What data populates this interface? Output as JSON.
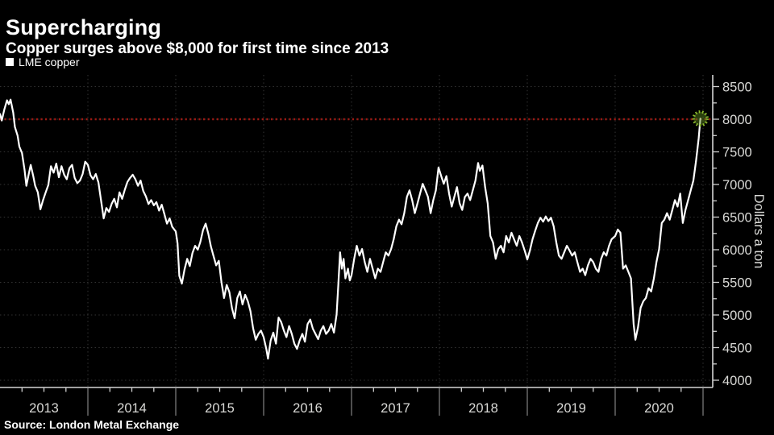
{
  "header": {
    "title": "Supercharging",
    "subtitle": "Copper surges above $8,000 for first time since 2013"
  },
  "legend": {
    "label": "LME copper"
  },
  "footer": {
    "source": "Source: London Metal Exchange"
  },
  "axes": {
    "y_label": "Dollars a ton",
    "y_ticks": [
      8500,
      8000,
      7500,
      7000,
      6500,
      6000,
      5500,
      5000,
      4500,
      4000
    ],
    "x_ticks": [
      2013,
      2014,
      2015,
      2016,
      2017,
      2018,
      2019,
      2020
    ]
  },
  "colors": {
    "background": "#000000",
    "line": "#ffffff",
    "threshold_red": "#9b1a13",
    "marker_green": "#8fbe2e",
    "grid": "#333333",
    "tick_text": "#d9d9d6"
  },
  "chart_data": {
    "type": "line",
    "title": "Supercharging",
    "xlabel": "",
    "ylabel": "Dollars a ton",
    "xlim": [
      2013,
      2021.1
    ],
    "ylim": [
      3890,
      8650
    ],
    "grid": true,
    "legend_position": "top-left",
    "threshold": {
      "value": 8000,
      "color": "#9b1a13",
      "style": "dotted"
    },
    "end_marker": {
      "x": 2020.97,
      "y": 8010,
      "shape": "dotted-circle",
      "color": "#8fbe2e"
    },
    "series": [
      {
        "name": "LME copper",
        "points": [
          [
            2013.0,
            8080
          ],
          [
            2013.02,
            7980
          ],
          [
            2013.05,
            8150
          ],
          [
            2013.08,
            8290
          ],
          [
            2013.1,
            8230
          ],
          [
            2013.12,
            8300
          ],
          [
            2013.15,
            8100
          ],
          [
            2013.17,
            7880
          ],
          [
            2013.2,
            7750
          ],
          [
            2013.22,
            7580
          ],
          [
            2013.25,
            7480
          ],
          [
            2013.28,
            7220
          ],
          [
            2013.3,
            6980
          ],
          [
            2013.33,
            7180
          ],
          [
            2013.35,
            7300
          ],
          [
            2013.38,
            7120
          ],
          [
            2013.4,
            6980
          ],
          [
            2013.43,
            6880
          ],
          [
            2013.46,
            6620
          ],
          [
            2013.49,
            6760
          ],
          [
            2013.52,
            6880
          ],
          [
            2013.55,
            6990
          ],
          [
            2013.58,
            7280
          ],
          [
            2013.61,
            7180
          ],
          [
            2013.64,
            7320
          ],
          [
            2013.67,
            7110
          ],
          [
            2013.7,
            7280
          ],
          [
            2013.73,
            7150
          ],
          [
            2013.76,
            7080
          ],
          [
            2013.79,
            7250
          ],
          [
            2013.82,
            7300
          ],
          [
            2013.85,
            7100
          ],
          [
            2013.88,
            7020
          ],
          [
            2013.91,
            7060
          ],
          [
            2013.94,
            7160
          ],
          [
            2013.97,
            7350
          ],
          [
            2014.0,
            7300
          ],
          [
            2014.03,
            7140
          ],
          [
            2014.06,
            7080
          ],
          [
            2014.09,
            7160
          ],
          [
            2014.12,
            7030
          ],
          [
            2014.15,
            6750
          ],
          [
            2014.18,
            6480
          ],
          [
            2014.21,
            6640
          ],
          [
            2014.24,
            6580
          ],
          [
            2014.27,
            6700
          ],
          [
            2014.3,
            6780
          ],
          [
            2014.33,
            6650
          ],
          [
            2014.36,
            6880
          ],
          [
            2014.39,
            6780
          ],
          [
            2014.42,
            6920
          ],
          [
            2014.45,
            7040
          ],
          [
            2014.48,
            7100
          ],
          [
            2014.51,
            7150
          ],
          [
            2014.54,
            7080
          ],
          [
            2014.57,
            6980
          ],
          [
            2014.6,
            7060
          ],
          [
            2014.63,
            6900
          ],
          [
            2014.66,
            6820
          ],
          [
            2014.69,
            6700
          ],
          [
            2014.72,
            6760
          ],
          [
            2014.75,
            6680
          ],
          [
            2014.78,
            6730
          ],
          [
            2014.81,
            6600
          ],
          [
            2014.84,
            6690
          ],
          [
            2014.87,
            6550
          ],
          [
            2014.9,
            6400
          ],
          [
            2014.93,
            6480
          ],
          [
            2014.96,
            6350
          ],
          [
            2015.0,
            6280
          ],
          [
            2015.02,
            6100
          ],
          [
            2015.04,
            5600
          ],
          [
            2015.07,
            5480
          ],
          [
            2015.1,
            5700
          ],
          [
            2015.13,
            5860
          ],
          [
            2015.16,
            5750
          ],
          [
            2015.19,
            5950
          ],
          [
            2015.22,
            6060
          ],
          [
            2015.25,
            6000
          ],
          [
            2015.28,
            6120
          ],
          [
            2015.31,
            6300
          ],
          [
            2015.34,
            6400
          ],
          [
            2015.37,
            6250
          ],
          [
            2015.4,
            6050
          ],
          [
            2015.43,
            5900
          ],
          [
            2015.46,
            5760
          ],
          [
            2015.49,
            5830
          ],
          [
            2015.52,
            5500
          ],
          [
            2015.55,
            5260
          ],
          [
            2015.58,
            5460
          ],
          [
            2015.61,
            5350
          ],
          [
            2015.64,
            5100
          ],
          [
            2015.67,
            4950
          ],
          [
            2015.7,
            5260
          ],
          [
            2015.73,
            5360
          ],
          [
            2015.76,
            5160
          ],
          [
            2015.79,
            5310
          ],
          [
            2015.82,
            5210
          ],
          [
            2015.85,
            5060
          ],
          [
            2015.88,
            4800
          ],
          [
            2015.91,
            4620
          ],
          [
            2015.94,
            4710
          ],
          [
            2015.97,
            4760
          ],
          [
            2016.0,
            4660
          ],
          [
            2016.03,
            4480
          ],
          [
            2016.05,
            4330
          ],
          [
            2016.08,
            4610
          ],
          [
            2016.11,
            4730
          ],
          [
            2016.14,
            4560
          ],
          [
            2016.17,
            4960
          ],
          [
            2016.2,
            4890
          ],
          [
            2016.23,
            4760
          ],
          [
            2016.26,
            4660
          ],
          [
            2016.29,
            4830
          ],
          [
            2016.32,
            4710
          ],
          [
            2016.35,
            4560
          ],
          [
            2016.38,
            4480
          ],
          [
            2016.41,
            4610
          ],
          [
            2016.44,
            4710
          ],
          [
            2016.47,
            4590
          ],
          [
            2016.5,
            4860
          ],
          [
            2016.53,
            4930
          ],
          [
            2016.56,
            4790
          ],
          [
            2016.59,
            4710
          ],
          [
            2016.62,
            4630
          ],
          [
            2016.65,
            4760
          ],
          [
            2016.68,
            4830
          ],
          [
            2016.71,
            4710
          ],
          [
            2016.74,
            4760
          ],
          [
            2016.77,
            4860
          ],
          [
            2016.8,
            4730
          ],
          [
            2016.83,
            5010
          ],
          [
            2016.85,
            5460
          ],
          [
            2016.87,
            5960
          ],
          [
            2016.89,
            5710
          ],
          [
            2016.91,
            5860
          ],
          [
            2016.93,
            5560
          ],
          [
            2016.96,
            5710
          ],
          [
            2016.98,
            5530
          ],
          [
            2017.0,
            5610
          ],
          [
            2017.03,
            5860
          ],
          [
            2017.06,
            6060
          ],
          [
            2017.09,
            5910
          ],
          [
            2017.12,
            6010
          ],
          [
            2017.15,
            5810
          ],
          [
            2017.18,
            5660
          ],
          [
            2017.21,
            5860
          ],
          [
            2017.24,
            5710
          ],
          [
            2017.27,
            5560
          ],
          [
            2017.3,
            5710
          ],
          [
            2017.33,
            5660
          ],
          [
            2017.36,
            5810
          ],
          [
            2017.39,
            5960
          ],
          [
            2017.42,
            5910
          ],
          [
            2017.45,
            6010
          ],
          [
            2017.48,
            6160
          ],
          [
            2017.51,
            6360
          ],
          [
            2017.54,
            6460
          ],
          [
            2017.57,
            6390
          ],
          [
            2017.6,
            6560
          ],
          [
            2017.63,
            6810
          ],
          [
            2017.66,
            6910
          ],
          [
            2017.69,
            6760
          ],
          [
            2017.72,
            6560
          ],
          [
            2017.75,
            6710
          ],
          [
            2017.78,
            6860
          ],
          [
            2017.81,
            7010
          ],
          [
            2017.84,
            6910
          ],
          [
            2017.87,
            6810
          ],
          [
            2017.9,
            6560
          ],
          [
            2017.93,
            6760
          ],
          [
            2017.96,
            6910
          ],
          [
            2017.99,
            7260
          ],
          [
            2018.02,
            7130
          ],
          [
            2018.05,
            7010
          ],
          [
            2018.08,
            7130
          ],
          [
            2018.11,
            6860
          ],
          [
            2018.14,
            6660
          ],
          [
            2018.17,
            6810
          ],
          [
            2018.2,
            6960
          ],
          [
            2018.23,
            6710
          ],
          [
            2018.26,
            6610
          ],
          [
            2018.29,
            6810
          ],
          [
            2018.32,
            6860
          ],
          [
            2018.35,
            6760
          ],
          [
            2018.38,
            6910
          ],
          [
            2018.41,
            7060
          ],
          [
            2018.44,
            7330
          ],
          [
            2018.46,
            7210
          ],
          [
            2018.49,
            7290
          ],
          [
            2018.52,
            6960
          ],
          [
            2018.55,
            6710
          ],
          [
            2018.58,
            6210
          ],
          [
            2018.61,
            6110
          ],
          [
            2018.64,
            5860
          ],
          [
            2018.67,
            6010
          ],
          [
            2018.7,
            6060
          ],
          [
            2018.73,
            5960
          ],
          [
            2018.76,
            6210
          ],
          [
            2018.79,
            6110
          ],
          [
            2018.82,
            6260
          ],
          [
            2018.85,
            6160
          ],
          [
            2018.88,
            6060
          ],
          [
            2018.91,
            6210
          ],
          [
            2018.94,
            6110
          ],
          [
            2018.97,
            5990
          ],
          [
            2019.0,
            5850
          ],
          [
            2019.03,
            5990
          ],
          [
            2019.06,
            6160
          ],
          [
            2019.09,
            6290
          ],
          [
            2019.12,
            6410
          ],
          [
            2019.15,
            6490
          ],
          [
            2019.18,
            6430
          ],
          [
            2019.21,
            6510
          ],
          [
            2019.24,
            6440
          ],
          [
            2019.27,
            6490
          ],
          [
            2019.3,
            6360
          ],
          [
            2019.33,
            6110
          ],
          [
            2019.36,
            5910
          ],
          [
            2019.39,
            5860
          ],
          [
            2019.42,
            5960
          ],
          [
            2019.45,
            6060
          ],
          [
            2019.48,
            5990
          ],
          [
            2019.51,
            5910
          ],
          [
            2019.54,
            5960
          ],
          [
            2019.57,
            5810
          ],
          [
            2019.6,
            5660
          ],
          [
            2019.63,
            5710
          ],
          [
            2019.66,
            5610
          ],
          [
            2019.69,
            5760
          ],
          [
            2019.72,
            5860
          ],
          [
            2019.75,
            5810
          ],
          [
            2019.78,
            5710
          ],
          [
            2019.81,
            5660
          ],
          [
            2019.84,
            5860
          ],
          [
            2019.87,
            5960
          ],
          [
            2019.9,
            5910
          ],
          [
            2019.93,
            6060
          ],
          [
            2019.96,
            6160
          ],
          [
            2020.0,
            6210
          ],
          [
            2020.03,
            6310
          ],
          [
            2020.06,
            6260
          ],
          [
            2020.09,
            5710
          ],
          [
            2020.12,
            5760
          ],
          [
            2020.15,
            5660
          ],
          [
            2020.18,
            5560
          ],
          [
            2020.21,
            4860
          ],
          [
            2020.23,
            4620
          ],
          [
            2020.26,
            4810
          ],
          [
            2020.29,
            5110
          ],
          [
            2020.32,
            5210
          ],
          [
            2020.35,
            5260
          ],
          [
            2020.38,
            5410
          ],
          [
            2020.41,
            5360
          ],
          [
            2020.44,
            5560
          ],
          [
            2020.47,
            5810
          ],
          [
            2020.5,
            6010
          ],
          [
            2020.53,
            6410
          ],
          [
            2020.56,
            6460
          ],
          [
            2020.59,
            6560
          ],
          [
            2020.62,
            6460
          ],
          [
            2020.65,
            6610
          ],
          [
            2020.68,
            6760
          ],
          [
            2020.71,
            6660
          ],
          [
            2020.74,
            6860
          ],
          [
            2020.77,
            6410
          ],
          [
            2020.8,
            6610
          ],
          [
            2020.83,
            6760
          ],
          [
            2020.86,
            6910
          ],
          [
            2020.89,
            7060
          ],
          [
            2020.92,
            7360
          ],
          [
            2020.95,
            7710
          ],
          [
            2020.97,
            8010
          ]
        ]
      }
    ]
  }
}
